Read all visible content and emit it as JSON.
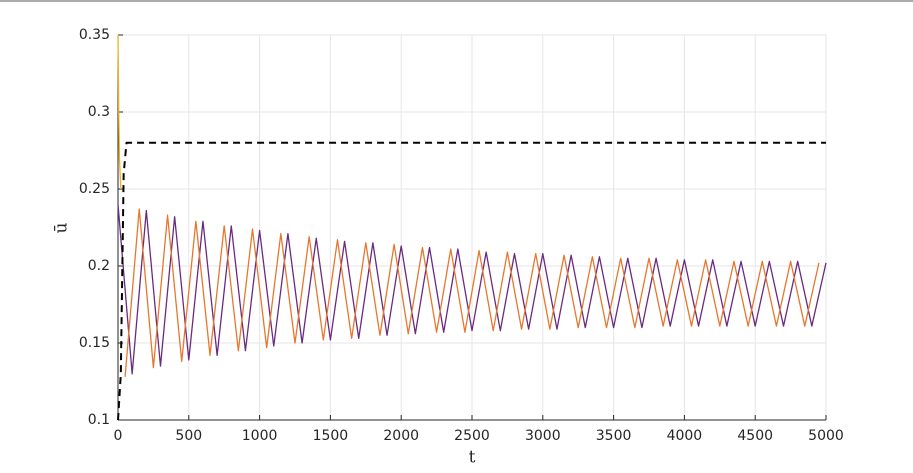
{
  "chart_data": {
    "type": "line",
    "xlabel": "t",
    "ylabel": "ū",
    "xlim": [
      0,
      5000
    ],
    "ylim": [
      0.1,
      0.35
    ],
    "xticks": [
      0,
      500,
      1000,
      1500,
      2000,
      2500,
      3000,
      3500,
      4000,
      4500,
      5000
    ],
    "yticks": [
      0.1,
      0.15,
      0.2,
      0.25,
      0.3,
      0.35
    ],
    "grid": true,
    "series": [
      {
        "color": "#6a2a80",
        "line_style": "solid",
        "x": [
          0,
          100,
          200,
          300,
          400,
          500,
          600,
          700,
          800,
          900,
          1000,
          1100,
          1200,
          1300,
          1400,
          1500,
          1600,
          1700,
          1800,
          1900,
          2000,
          2100,
          2200,
          2300,
          2400,
          2500,
          2600,
          2700,
          2800,
          2900,
          3000,
          3100,
          3200,
          3300,
          3400,
          3500,
          3600,
          3700,
          3800,
          3900,
          4000,
          4100,
          4200,
          4300,
          4400,
          4500,
          4600,
          4700,
          4800,
          4900,
          5000
        ],
        "values": [
          0.24,
          0.13,
          0.236,
          0.135,
          0.232,
          0.139,
          0.229,
          0.142,
          0.226,
          0.145,
          0.223,
          0.148,
          0.221,
          0.15,
          0.218,
          0.152,
          0.216,
          0.153,
          0.215,
          0.155,
          0.213,
          0.156,
          0.212,
          0.157,
          0.211,
          0.158,
          0.209,
          0.158,
          0.208,
          0.159,
          0.208,
          0.159,
          0.207,
          0.16,
          0.206,
          0.16,
          0.205,
          0.16,
          0.205,
          0.161,
          0.204,
          0.161,
          0.204,
          0.161,
          0.203,
          0.161,
          0.203,
          0.161,
          0.203,
          0.161,
          0.202
        ]
      },
      {
        "color": "#e8772e",
        "line_style": "solid",
        "x": [
          50,
          150,
          250,
          350,
          450,
          550,
          650,
          750,
          850,
          950,
          1050,
          1150,
          1250,
          1350,
          1450,
          1550,
          1650,
          1750,
          1850,
          1950,
          2050,
          2150,
          2250,
          2350,
          2450,
          2550,
          2650,
          2750,
          2850,
          2950,
          3050,
          3150,
          3250,
          3350,
          3450,
          3550,
          3650,
          3750,
          3850,
          3950,
          4050,
          4150,
          4250,
          4350,
          4450,
          4550,
          4650,
          4750,
          4850,
          4950
        ],
        "values": [
          0.128,
          0.237,
          0.134,
          0.233,
          0.138,
          0.229,
          0.142,
          0.226,
          0.145,
          0.224,
          0.147,
          0.221,
          0.15,
          0.219,
          0.152,
          0.217,
          0.153,
          0.215,
          0.155,
          0.214,
          0.156,
          0.212,
          0.157,
          0.211,
          0.157,
          0.21,
          0.158,
          0.209,
          0.159,
          0.208,
          0.159,
          0.207,
          0.16,
          0.206,
          0.16,
          0.205,
          0.16,
          0.205,
          0.161,
          0.204,
          0.161,
          0.204,
          0.161,
          0.203,
          0.161,
          0.203,
          0.161,
          0.203,
          0.161,
          0.202
        ]
      },
      {
        "color": "#edb120",
        "line_style": "solid",
        "x": [
          0,
          5,
          10,
          20
        ],
        "values": [
          0.35,
          0.3,
          0.27,
          0.25
        ]
      },
      {
        "color": "#000000",
        "line_style": "dashed",
        "x": [
          0,
          20,
          40,
          60,
          5000
        ],
        "values": [
          0.1,
          0.13,
          0.26,
          0.28,
          0.28
        ]
      }
    ]
  }
}
